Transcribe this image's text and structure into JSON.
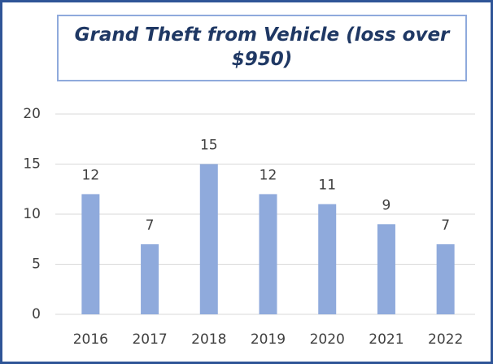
{
  "chart_data": {
    "type": "bar",
    "title": "Grand Theft from Vehicle (loss over $950)",
    "categories": [
      "2016",
      "2017",
      "2018",
      "2019",
      "2020",
      "2021",
      "2022"
    ],
    "values": [
      12,
      7,
      15,
      12,
      11,
      9,
      7
    ],
    "color": "#8faadc",
    "ylim": [
      0,
      20
    ],
    "yticks": [
      0,
      5,
      10,
      15,
      20
    ],
    "grid": true
  }
}
